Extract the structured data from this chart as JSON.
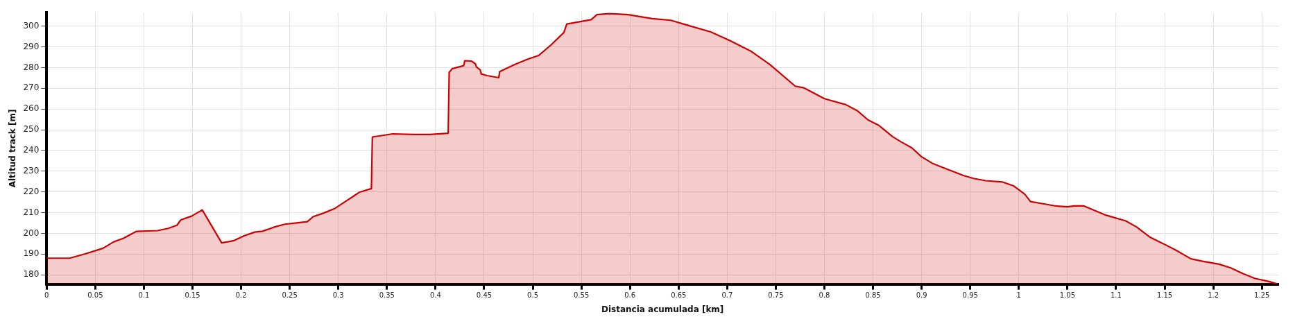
{
  "chart_data": {
    "type": "area",
    "xlabel": "Distancia acumulada [km]",
    "ylabel": "Altitud track [m]",
    "x": [
      0,
      0.0235,
      0.039,
      0.058,
      0.069,
      0.079,
      0.092,
      0.114,
      0.125,
      0.134,
      0.138,
      0.149,
      0.16,
      0.18,
      0.192,
      0.203,
      0.214,
      0.222,
      0.234,
      0.245,
      0.257,
      0.268,
      0.274,
      0.285,
      0.296,
      0.309,
      0.322,
      0.334,
      0.335,
      0.356,
      0.378,
      0.394,
      0.413,
      0.414,
      0.417,
      0.429,
      0.43,
      0.437,
      0.441,
      0.442,
      0.446,
      0.447,
      0.453,
      0.465,
      0.466,
      0.481,
      0.494,
      0.506,
      0.519,
      0.532,
      0.535,
      0.56,
      0.566,
      0.579,
      0.598,
      0.623,
      0.642,
      0.658,
      0.683,
      0.702,
      0.724,
      0.744,
      0.77,
      0.779,
      0.8,
      0.822,
      0.834,
      0.845,
      0.856,
      0.87,
      0.879,
      0.89,
      0.9,
      0.911,
      0.925,
      0.943,
      0.954,
      0.966,
      0.983,
      0.995,
      1.006,
      1.012,
      1.026,
      1.038,
      1.05,
      1.057,
      1.067,
      1.078,
      1.09,
      1.11,
      1.121,
      1.135,
      1.149,
      1.161,
      1.177,
      1.188,
      1.206,
      1.218,
      1.231,
      1.243,
      1.256,
      1.266
    ],
    "series": [
      {
        "color": "#cc0000",
        "values": [
          188,
          188,
          190,
          192.8,
          195.9,
          197.6,
          200.9,
          201.3,
          202.4,
          203.9,
          206.5,
          208.3,
          211.3,
          195.4,
          196.4,
          198.8,
          200.6,
          201,
          203,
          204.4,
          205,
          205.6,
          208,
          209.8,
          211.9,
          215.9,
          219.9,
          221.6,
          246.5,
          248,
          247.7,
          247.7,
          248.3,
          277.6,
          279.4,
          280.9,
          283.3,
          283.1,
          281.8,
          280.3,
          278.8,
          276.9,
          276.1,
          275.1,
          278,
          281.4,
          283.9,
          285.8,
          291,
          296.9,
          301,
          303.1,
          305.5,
          306,
          305.5,
          303.6,
          302.8,
          300.6,
          297.2,
          293.2,
          288,
          281.4,
          271,
          270.2,
          265,
          262.1,
          259.1,
          254.7,
          252.1,
          246.7,
          244.1,
          241.2,
          236.9,
          233.8,
          231.2,
          227.9,
          226.4,
          225.4,
          224.8,
          222.8,
          218.9,
          215.3,
          214.2,
          213.2,
          212.8,
          213.2,
          213.2,
          211,
          208.7,
          206,
          203.1,
          198.1,
          194.9,
          192,
          187.7,
          186.6,
          185.1,
          183.3,
          180.5,
          178.2,
          176.9,
          175.6
        ]
      }
    ],
    "xlim": [
      0,
      1.267
    ],
    "xticks": [
      0,
      0.05,
      0.1,
      0.15,
      0.2,
      0.25,
      0.3,
      0.35,
      0.4,
      0.45,
      0.5,
      0.55,
      0.6,
      0.65,
      0.7,
      0.75,
      0.8,
      0.85,
      0.9,
      0.95,
      1,
      1.05,
      1.1,
      1.15,
      1.2,
      1.25
    ],
    "ylim": [
      175.5,
      306.5
    ],
    "yticks": [
      180,
      190,
      200,
      210,
      220,
      230,
      240,
      250,
      260,
      270,
      280,
      290,
      300
    ],
    "grid": true,
    "legend": false,
    "marker": "none",
    "line_style": "solid"
  }
}
